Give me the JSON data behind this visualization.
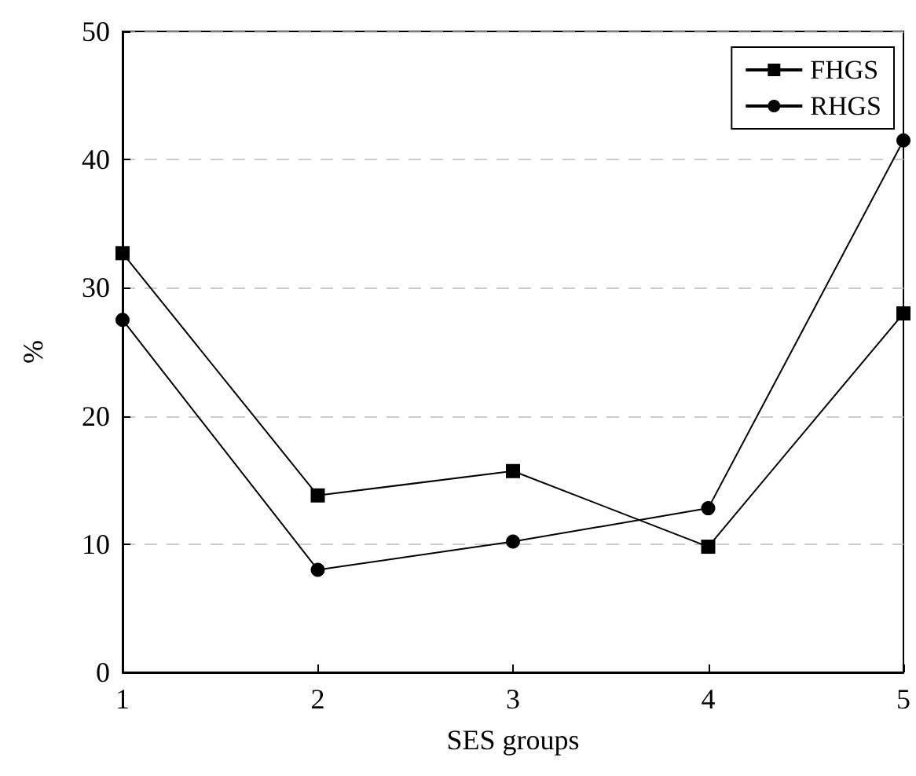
{
  "chart_data": {
    "type": "line",
    "xlabel": "SES groups",
    "ylabel": "%",
    "x": [
      1,
      2,
      3,
      4,
      5
    ],
    "xlim": [
      1,
      5
    ],
    "xticks": [
      1,
      2,
      3,
      4,
      5
    ],
    "ylim": [
      0,
      50
    ],
    "yticks": [
      0,
      10,
      20,
      30,
      40,
      50
    ],
    "grid": "y",
    "legend": "top right",
    "line_style": "solid",
    "series": [
      {
        "name": "FHGS",
        "color": "#000000",
        "marker": "square",
        "values": [
          32.7,
          13.8,
          15.7,
          9.8,
          28.0
        ]
      },
      {
        "name": "RHGS",
        "color": "#000000",
        "marker": "circle",
        "values": [
          27.5,
          8.0,
          10.2,
          12.8,
          41.5
        ]
      }
    ]
  }
}
